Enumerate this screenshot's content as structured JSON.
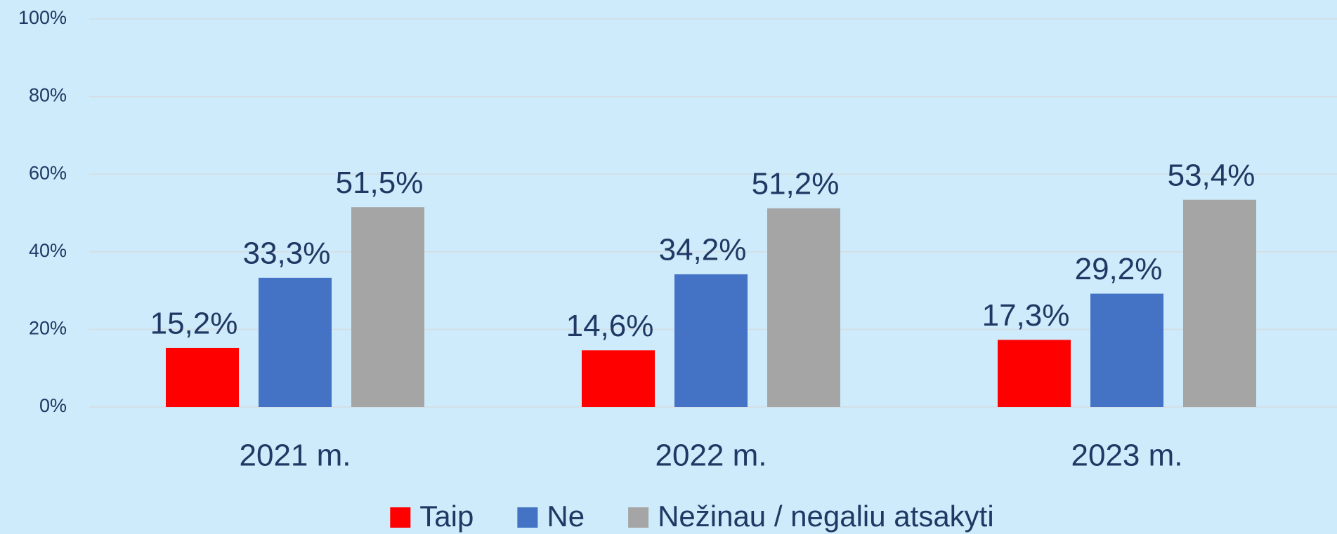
{
  "chart_data": {
    "type": "bar",
    "categories": [
      "2021 m.",
      "2022 m.",
      "2023 m."
    ],
    "series": [
      {
        "name": "Taip",
        "color": "#ff0000",
        "values": [
          15.2,
          14.6,
          17.3
        ],
        "value_labels": [
          "15,2%",
          "14,6%",
          "17,3%"
        ]
      },
      {
        "name": "Ne",
        "color": "#4472c4",
        "values": [
          33.3,
          34.2,
          29.2
        ],
        "value_labels": [
          "33,3%",
          "34,2%",
          "29,2%"
        ]
      },
      {
        "name": "Nežinau / negaliu atsakyti",
        "color": "#a5a5a5",
        "values": [
          51.5,
          51.2,
          53.4
        ],
        "value_labels": [
          "51,5%",
          "51,2%",
          "53,4%"
        ]
      }
    ],
    "ylim": [
      0,
      100
    ],
    "yticks": [
      {
        "value": 0,
        "label": "0%"
      },
      {
        "value": 20,
        "label": "20%"
      },
      {
        "value": 40,
        "label": "40%"
      },
      {
        "value": 60,
        "label": "60%"
      },
      {
        "value": 80,
        "label": "80%"
      },
      {
        "value": 100,
        "label": "100%"
      }
    ],
    "grid": true,
    "legend": "bottom"
  }
}
